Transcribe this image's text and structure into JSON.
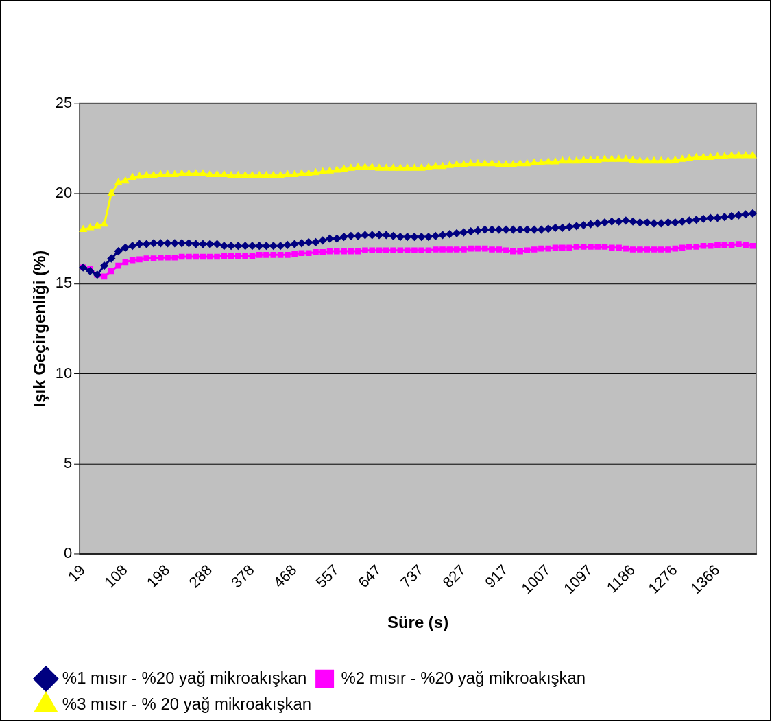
{
  "chart_data": {
    "type": "line",
    "xlabel": "Süre (s)",
    "ylabel": "Işık Geçirgenliği (%)",
    "categories": [
      "19",
      null,
      null,
      null,
      null,
      null,
      "108",
      null,
      null,
      null,
      null,
      null,
      "198",
      null,
      null,
      null,
      null,
      null,
      "288",
      null,
      null,
      null,
      null,
      null,
      "378",
      null,
      null,
      null,
      null,
      null,
      "468",
      null,
      null,
      null,
      null,
      null,
      "557",
      null,
      null,
      null,
      null,
      null,
      "647",
      null,
      null,
      null,
      null,
      null,
      "737",
      null,
      null,
      null,
      null,
      null,
      "827",
      null,
      null,
      null,
      null,
      null,
      "917",
      null,
      null,
      null,
      null,
      null,
      "1007",
      null,
      null,
      null,
      null,
      null,
      "1097",
      null,
      null,
      null,
      null,
      null,
      "1186",
      null,
      null,
      null,
      null,
      null,
      "1276",
      null,
      null,
      null,
      null,
      null,
      "1366",
      null,
      null,
      null,
      null,
      null
    ],
    "series": [
      {
        "name": "%1 mısır - %20 yağ mikroakışkan",
        "color": "#000080",
        "marker": "diamond",
        "values": [
          15.9,
          15.7,
          15.5,
          16.0,
          16.4,
          16.8,
          17.0,
          17.1,
          17.2,
          17.2,
          17.25,
          17.25,
          17.25,
          17.25,
          17.25,
          17.25,
          17.2,
          17.2,
          17.2,
          17.2,
          17.1,
          17.1,
          17.1,
          17.1,
          17.1,
          17.1,
          17.1,
          17.1,
          17.1,
          17.15,
          17.2,
          17.25,
          17.3,
          17.3,
          17.4,
          17.5,
          17.5,
          17.6,
          17.65,
          17.65,
          17.7,
          17.7,
          17.7,
          17.7,
          17.65,
          17.6,
          17.6,
          17.6,
          17.6,
          17.6,
          17.65,
          17.7,
          17.75,
          17.8,
          17.85,
          17.9,
          17.95,
          18.0,
          18.0,
          18.0,
          18.0,
          18.0,
          18.0,
          18.0,
          18.0,
          18.0,
          18.05,
          18.1,
          18.1,
          18.15,
          18.2,
          18.25,
          18.3,
          18.35,
          18.4,
          18.45,
          18.45,
          18.5,
          18.45,
          18.4,
          18.4,
          18.35,
          18.35,
          18.4,
          18.4,
          18.45,
          18.5,
          18.55,
          18.6,
          18.65,
          18.65,
          18.7,
          18.75,
          18.8,
          18.85,
          18.9
        ]
      },
      {
        "name": "%2 mısır - %20 yağ mikroakışkan",
        "color": "#ff00ff",
        "marker": "square",
        "values": [
          15.9,
          15.8,
          15.5,
          15.4,
          15.7,
          16.0,
          16.2,
          16.3,
          16.35,
          16.4,
          16.4,
          16.45,
          16.45,
          16.45,
          16.5,
          16.5,
          16.5,
          16.5,
          16.5,
          16.5,
          16.55,
          16.55,
          16.55,
          16.55,
          16.55,
          16.6,
          16.6,
          16.6,
          16.6,
          16.6,
          16.65,
          16.7,
          16.7,
          16.75,
          16.75,
          16.8,
          16.8,
          16.8,
          16.8,
          16.8,
          16.85,
          16.85,
          16.85,
          16.85,
          16.85,
          16.85,
          16.85,
          16.85,
          16.85,
          16.85,
          16.9,
          16.9,
          16.9,
          16.9,
          16.9,
          16.95,
          16.95,
          16.95,
          16.9,
          16.9,
          16.85,
          16.8,
          16.8,
          16.85,
          16.9,
          16.95,
          16.95,
          17.0,
          17.0,
          17.0,
          17.05,
          17.05,
          17.05,
          17.05,
          17.05,
          17.0,
          17.0,
          16.95,
          16.9,
          16.9,
          16.9,
          16.9,
          16.9,
          16.9,
          16.95,
          17.0,
          17.05,
          17.05,
          17.1,
          17.1,
          17.15,
          17.15,
          17.15,
          17.2,
          17.15,
          17.1
        ]
      },
      {
        "name": "%3 mısır - % 20 yağ mikroakışkan",
        "color": "#ffff00",
        "marker": "triangle",
        "values": [
          18.0,
          18.1,
          18.2,
          18.3,
          20.0,
          20.6,
          20.7,
          20.9,
          20.95,
          21.0,
          21.0,
          21.05,
          21.05,
          21.05,
          21.1,
          21.1,
          21.1,
          21.1,
          21.05,
          21.05,
          21.05,
          21.0,
          21.0,
          21.0,
          21.0,
          21.0,
          21.0,
          21.0,
          21.0,
          21.05,
          21.05,
          21.1,
          21.1,
          21.15,
          21.2,
          21.25,
          21.3,
          21.35,
          21.4,
          21.45,
          21.45,
          21.45,
          21.4,
          21.4,
          21.4,
          21.4,
          21.4,
          21.4,
          21.4,
          21.45,
          21.5,
          21.5,
          21.55,
          21.6,
          21.6,
          21.65,
          21.65,
          21.65,
          21.65,
          21.6,
          21.6,
          21.6,
          21.65,
          21.65,
          21.7,
          21.7,
          21.75,
          21.75,
          21.8,
          21.8,
          21.8,
          21.85,
          21.85,
          21.85,
          21.9,
          21.9,
          21.9,
          21.9,
          21.85,
          21.8,
          21.8,
          21.8,
          21.8,
          21.8,
          21.85,
          21.9,
          21.95,
          22.0,
          22.0,
          22.0,
          22.05,
          22.05,
          22.1,
          22.1,
          22.1,
          22.1
        ]
      }
    ],
    "ylim": [
      0,
      25
    ],
    "yticks": [
      0,
      5,
      10,
      15,
      20,
      25
    ],
    "grid": "y",
    "legend": "bottom"
  }
}
